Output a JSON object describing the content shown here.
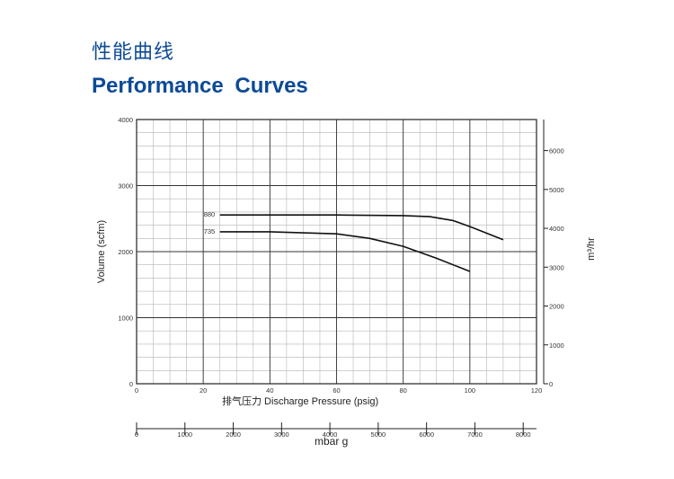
{
  "header": {
    "title_cn": "性能曲线",
    "title_en": "Performance  Curves"
  },
  "colors": {
    "title": "#0c4a96",
    "curve": "#111111",
    "grid_major": "#333333",
    "grid_minor": "#b5b5b5"
  },
  "chart_data": {
    "type": "line",
    "title": "Performance  Curves",
    "xlabel": "排气压力 Discharge Pressure (psig)",
    "ylabel": "Volume (scfm)",
    "y2label": "m³/hr",
    "x2label": "mbar g",
    "xlim": [
      0,
      120
    ],
    "ylim": [
      0,
      4000
    ],
    "y2lim": [
      0,
      6800
    ],
    "x2lim": [
      0,
      8275
    ],
    "x_ticks": [
      0,
      20,
      40,
      60,
      80,
      100,
      120
    ],
    "y_ticks": [
      0,
      1000,
      2000,
      3000,
      4000
    ],
    "y2_ticks": [
      0,
      1000,
      2000,
      3000,
      4000,
      5000,
      6000
    ],
    "x2_ticks": [
      0,
      1000,
      2000,
      3000,
      4000,
      5000,
      6000,
      7000,
      8000
    ],
    "grid": true,
    "series": [
      {
        "name": "880",
        "x": [
          25,
          40,
          60,
          80,
          88,
          95,
          100,
          110
        ],
        "y": [
          2555,
          2555,
          2555,
          2545,
          2530,
          2470,
          2380,
          2180
        ]
      },
      {
        "name": "735",
        "x": [
          25,
          40,
          60,
          70,
          80,
          90,
          100
        ],
        "y": [
          2300,
          2300,
          2270,
          2200,
          2080,
          1900,
          1700
        ]
      }
    ]
  }
}
